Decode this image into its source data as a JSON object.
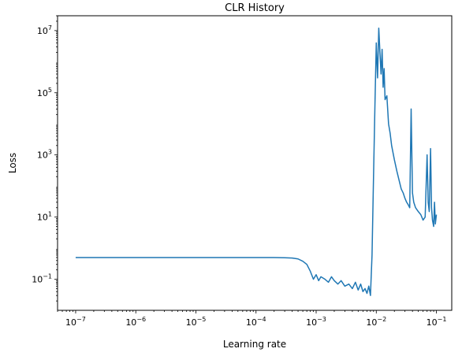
{
  "chart_data": {
    "type": "line",
    "title": "CLR History",
    "xlabel": "Learning rate",
    "ylabel": "Loss",
    "xscale": "log",
    "yscale": "log",
    "xlim": [
      5e-08,
      0.18
    ],
    "ylim": [
      0.01,
      30000000
    ],
    "x_ticks": [
      {
        "value": 1e-07,
        "base": "10",
        "exp": "−7"
      },
      {
        "value": 1e-06,
        "base": "10",
        "exp": "−6"
      },
      {
        "value": 1e-05,
        "base": "10",
        "exp": "−5"
      },
      {
        "value": 0.0001,
        "base": "10",
        "exp": "−4"
      },
      {
        "value": 0.001,
        "base": "10",
        "exp": "−3"
      },
      {
        "value": 0.01,
        "base": "10",
        "exp": "−2"
      },
      {
        "value": 0.1,
        "base": "10",
        "exp": "−1"
      }
    ],
    "y_ticks": [
      {
        "value": 0.1,
        "base": "10",
        "exp": "−1"
      },
      {
        "value": 10,
        "base": "10",
        "exp": "1"
      },
      {
        "value": 1000,
        "base": "10",
        "exp": "3"
      },
      {
        "value": 100000,
        "base": "10",
        "exp": "5"
      },
      {
        "value": 10000000,
        "base": "10",
        "exp": "7"
      }
    ],
    "grid": false,
    "line_color": "#1f77b4",
    "series": [
      {
        "x": [
          1e-07,
          1e-06,
          1e-05,
          0.0001,
          0.0002,
          0.0003,
          0.0004,
          0.0005,
          0.0006,
          0.0007,
          0.0008,
          0.0009,
          0.001,
          0.0011,
          0.0012,
          0.0014,
          0.0016,
          0.0018,
          0.002,
          0.0023,
          0.0026,
          0.003,
          0.0035,
          0.004,
          0.0045,
          0.005,
          0.0055,
          0.006,
          0.0065,
          0.007,
          0.0075,
          0.008,
          0.0085,
          0.009,
          0.0095,
          0.01,
          0.0105,
          0.011,
          0.0115,
          0.012,
          0.0125,
          0.013,
          0.0135,
          0.014,
          0.015,
          0.016,
          0.017,
          0.018,
          0.02,
          0.022,
          0.024,
          0.026,
          0.028,
          0.03,
          0.032,
          0.034,
          0.036,
          0.038,
          0.04,
          0.042,
          0.045,
          0.05,
          0.055,
          0.06,
          0.065,
          0.07,
          0.073,
          0.076,
          0.08,
          0.083,
          0.086,
          0.09,
          0.093,
          0.096,
          0.1
        ],
        "y": [
          0.5,
          0.5,
          0.5,
          0.5,
          0.5,
          0.49,
          0.48,
          0.45,
          0.38,
          0.3,
          0.18,
          0.1,
          0.14,
          0.09,
          0.12,
          0.1,
          0.08,
          0.12,
          0.09,
          0.07,
          0.09,
          0.06,
          0.07,
          0.05,
          0.08,
          0.045,
          0.07,
          0.04,
          0.05,
          0.035,
          0.06,
          0.03,
          0.6,
          200,
          40000,
          4000000,
          300000,
          12000000,
          2000000,
          400000,
          2500000,
          150000,
          600000,
          60000,
          80000,
          10000,
          5000,
          2000,
          700,
          300,
          150,
          80,
          60,
          40,
          30,
          25,
          20,
          30000,
          60,
          30,
          20,
          15,
          12,
          8,
          10,
          1000,
          30,
          15,
          1600,
          20,
          8,
          5,
          30,
          6,
          12
        ]
      }
    ]
  }
}
